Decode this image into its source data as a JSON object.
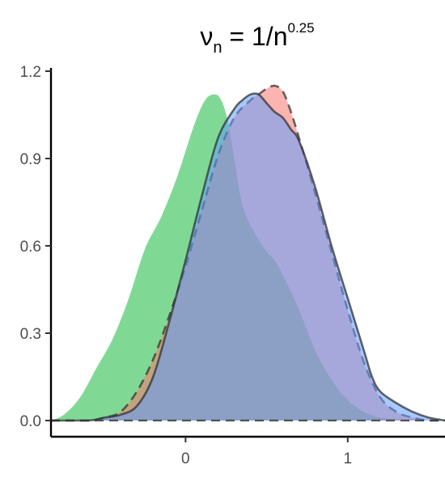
{
  "chart_data": {
    "type": "area",
    "title": {
      "symbol": "ν",
      "subscript": "n",
      "middle": " = 1/n",
      "superscript": "0.25"
    },
    "xlabel": "",
    "ylabel": "",
    "xlim": [
      -0.83,
      1.6
    ],
    "ylim": [
      0,
      1.2
    ],
    "x_ticks": [
      0,
      1
    ],
    "y_ticks": [
      0.0,
      0.3,
      0.6,
      0.9,
      1.2
    ],
    "y_tick_labels": [
      "0.0",
      "0.3",
      "0.6",
      "0.9",
      "1.2"
    ],
    "grid": false,
    "legend": "none",
    "series": [
      {
        "color": "#5fd07a",
        "opacity": 0.8,
        "outline": "none",
        "x": [
          -0.83,
          -0.75,
          -0.65,
          -0.55,
          -0.45,
          -0.35,
          -0.25,
          -0.15,
          -0.05,
          0.05,
          0.12,
          0.18,
          0.22,
          0.26,
          0.3,
          0.35,
          0.42,
          0.5,
          0.55,
          0.6,
          0.7,
          0.8,
          0.9,
          1.0,
          1.1,
          1.2,
          1.3,
          1.4,
          1.5,
          1.6
        ],
        "y": [
          0.0,
          0.02,
          0.08,
          0.18,
          0.28,
          0.42,
          0.59,
          0.7,
          0.84,
          1.01,
          1.1,
          1.12,
          1.1,
          1.03,
          0.9,
          0.74,
          0.65,
          0.58,
          0.55,
          0.5,
          0.38,
          0.24,
          0.14,
          0.07,
          0.03,
          0.01,
          0.005,
          0.0,
          0.0,
          0.0
        ]
      },
      {
        "color": "#f8766d",
        "opacity": 0.55,
        "outline": "dashed",
        "x": [
          -0.83,
          -0.6,
          -0.5,
          -0.4,
          -0.3,
          -0.2,
          -0.1,
          0.0,
          0.1,
          0.2,
          0.3,
          0.4,
          0.45,
          0.5,
          0.55,
          0.6,
          0.65,
          0.7,
          0.8,
          0.9,
          1.0,
          1.1,
          1.2,
          1.3,
          1.4,
          1.5,
          1.6
        ],
        "y": [
          0.0,
          0.0,
          0.01,
          0.03,
          0.1,
          0.21,
          0.36,
          0.53,
          0.72,
          0.91,
          1.04,
          1.1,
          1.12,
          1.14,
          1.15,
          1.13,
          1.06,
          0.97,
          0.78,
          0.58,
          0.38,
          0.2,
          0.08,
          0.03,
          0.01,
          0.0,
          0.0
        ]
      },
      {
        "color": "#619cff",
        "opacity": 0.55,
        "outline": "solid",
        "x": [
          -0.83,
          -0.6,
          -0.5,
          -0.4,
          -0.3,
          -0.2,
          -0.1,
          0.0,
          0.1,
          0.2,
          0.3,
          0.35,
          0.4,
          0.45,
          0.5,
          0.55,
          0.6,
          0.65,
          0.7,
          0.8,
          0.9,
          1.0,
          1.1,
          1.15,
          1.2,
          1.3,
          1.4,
          1.5,
          1.6
        ],
        "y": [
          0.0,
          0.0,
          0.01,
          0.02,
          0.05,
          0.15,
          0.34,
          0.55,
          0.77,
          0.97,
          1.07,
          1.1,
          1.12,
          1.12,
          1.09,
          1.06,
          1.04,
          1.0,
          0.96,
          0.8,
          0.6,
          0.42,
          0.24,
          0.15,
          0.1,
          0.06,
          0.03,
          0.01,
          0.0
        ]
      }
    ]
  }
}
